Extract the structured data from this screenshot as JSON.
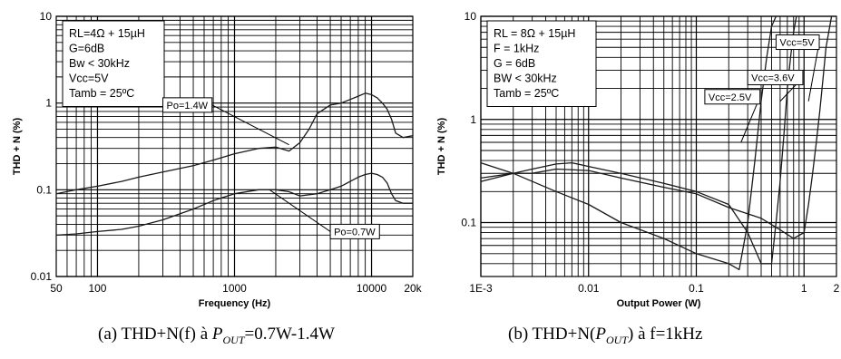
{
  "chart_data": [
    {
      "type": "line",
      "caption": "(a) THD+N(f) à ",
      "caption_var": "P",
      "caption_sub": "OUT",
      "caption_tail": "=0.7W-1.4W",
      "xlabel": "Frequency (Hz)",
      "ylabel": "THD + N (%)",
      "x_scale": "log",
      "y_scale": "log",
      "xlim": [
        50,
        20000
      ],
      "ylim": [
        0.01,
        10
      ],
      "grid": true,
      "x_ticks": [
        {
          "v": 50,
          "label": "50"
        },
        {
          "v": 100,
          "label": "100"
        },
        {
          "v": 1000,
          "label": "1000"
        },
        {
          "v": 10000,
          "label": "10000"
        },
        {
          "v": 20000,
          "label": "20k"
        }
      ],
      "y_ticks": [
        {
          "v": 0.01,
          "label": "0.01"
        },
        {
          "v": 0.1,
          "label": "0.1"
        },
        {
          "v": 1,
          "label": "1"
        },
        {
          "v": 10,
          "label": "10"
        }
      ],
      "conditions": [
        "RL=4Ω + 15µH",
        "G=6dB",
        "Bw < 30kHz",
        "Vcc=5V",
        "Tamb = 25ºC"
      ],
      "series": [
        {
          "name": "Po=1.4W",
          "label_at": [
            300,
            1.15
          ],
          "arrow_to": [
            2500,
            0.33
          ],
          "x": [
            50,
            70,
            100,
            150,
            200,
            300,
            500,
            700,
            1000,
            1500,
            2000,
            2500,
            3000,
            3500,
            4000,
            5000,
            6000,
            7000,
            8000,
            9000,
            10000,
            11000,
            12000,
            13000,
            14000,
            15000,
            17000,
            20000
          ],
          "y": [
            0.09,
            0.1,
            0.11,
            0.125,
            0.14,
            0.16,
            0.19,
            0.22,
            0.26,
            0.3,
            0.31,
            0.28,
            0.35,
            0.5,
            0.75,
            0.95,
            1.0,
            1.1,
            1.2,
            1.3,
            1.25,
            1.15,
            1.0,
            0.85,
            0.65,
            0.45,
            0.4,
            0.42
          ]
        },
        {
          "name": "Po=0.7W",
          "label_at": [
            5000,
            0.04
          ],
          "arrow_to": [
            1800,
            0.1
          ],
          "x": [
            50,
            70,
            100,
            150,
            200,
            300,
            500,
            700,
            1000,
            1500,
            2000,
            2500,
            3000,
            4000,
            5000,
            6000,
            7000,
            8000,
            9000,
            10000,
            11000,
            12000,
            13000,
            14000,
            15000,
            17000,
            20000
          ],
          "y": [
            0.03,
            0.031,
            0.033,
            0.035,
            0.038,
            0.045,
            0.06,
            0.075,
            0.09,
            0.1,
            0.1,
            0.095,
            0.085,
            0.09,
            0.1,
            0.11,
            0.125,
            0.14,
            0.15,
            0.155,
            0.15,
            0.14,
            0.12,
            0.09,
            0.075,
            0.07,
            0.07
          ]
        }
      ]
    },
    {
      "type": "line",
      "caption": "(b) THD+N(",
      "caption_var": "P",
      "caption_sub": "OUT",
      "caption_tail": ") à f=1kHz",
      "xlabel": "Output Power (W)",
      "ylabel": "THD + N (%)",
      "x_scale": "log",
      "y_scale": "log",
      "xlim": [
        0.001,
        2
      ],
      "ylim": [
        0.03,
        10
      ],
      "grid": true,
      "x_ticks": [
        {
          "v": 0.001,
          "label": "1E-3"
        },
        {
          "v": 0.01,
          "label": "0.01"
        },
        {
          "v": 0.1,
          "label": "0.1"
        },
        {
          "v": 1,
          "label": "1"
        },
        {
          "v": 2,
          "label": "2"
        }
      ],
      "y_ticks": [
        {
          "v": 0.1,
          "label": "0.1"
        },
        {
          "v": 1,
          "label": "1"
        },
        {
          "v": 10,
          "label": "10"
        }
      ],
      "conditions": [
        "RL = 8Ω + 15µH",
        "F = 1kHz",
        "G = 6dB",
        "BW < 30kHz",
        "Tamb = 25ºC"
      ],
      "series": [
        {
          "name": "Vcc=5V",
          "label_at": [
            0.55,
            6.6
          ],
          "arrow_to": [
            1.1,
            1.5
          ],
          "x": [
            0.001,
            0.002,
            0.003,
            0.005,
            0.01,
            0.02,
            0.05,
            0.1,
            0.2,
            0.4,
            0.6,
            0.8,
            1.0,
            1.1,
            1.2,
            1.3,
            1.4,
            1.5,
            1.6,
            1.8
          ],
          "y": [
            0.27,
            0.3,
            0.3,
            0.33,
            0.32,
            0.27,
            0.22,
            0.19,
            0.14,
            0.11,
            0.085,
            0.07,
            0.08,
            0.15,
            0.3,
            0.6,
            1.2,
            2.5,
            5,
            10
          ]
        },
        {
          "name": "Vcc=3.6V",
          "label_at": [
            0.3,
            3.0
          ],
          "arrow_to": [
            0.6,
            1.5
          ],
          "x": [
            0.001,
            0.002,
            0.003,
            0.005,
            0.007,
            0.01,
            0.02,
            0.05,
            0.1,
            0.2,
            0.3,
            0.4,
            0.5,
            0.55,
            0.6,
            0.65,
            0.7,
            0.75,
            0.8,
            0.85
          ],
          "y": [
            0.25,
            0.3,
            0.33,
            0.37,
            0.38,
            0.35,
            0.3,
            0.24,
            0.2,
            0.15,
            0.08,
            0.04,
            0.04,
            0.1,
            0.25,
            0.7,
            2,
            4,
            7,
            10
          ]
        },
        {
          "name": "Vcc=2.5V",
          "label_at": [
            0.12,
            1.95
          ],
          "arrow_to": [
            0.26,
            0.6
          ],
          "x": [
            0.001,
            0.002,
            0.005,
            0.01,
            0.02,
            0.05,
            0.1,
            0.2,
            0.25,
            0.3,
            0.35,
            0.4,
            0.45,
            0.5,
            0.55
          ],
          "y": [
            0.38,
            0.3,
            0.2,
            0.15,
            0.1,
            0.07,
            0.05,
            0.04,
            0.035,
            0.1,
            0.4,
            1.5,
            4,
            8,
            10
          ]
        }
      ]
    }
  ]
}
